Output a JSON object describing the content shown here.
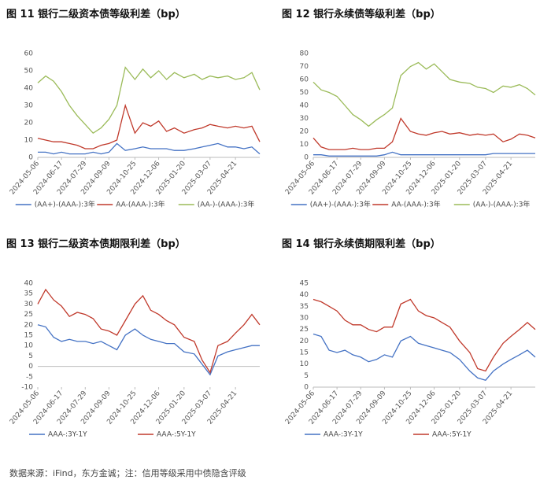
{
  "chart_data": [
    {
      "type": "line",
      "title": "图 11 银行二级资本债等级利差（bp）",
      "x": [
        "2024-05-06",
        "2024-05-20",
        "2024-06-03",
        "2024-06-17",
        "2024-07-01",
        "2024-07-15",
        "2024-07-29",
        "2024-08-12",
        "2024-08-26",
        "2024-09-09",
        "2024-09-23",
        "2024-10-08",
        "2024-10-25",
        "2024-11-08",
        "2024-11-22",
        "2024-12-06",
        "2024-12-20",
        "2025-01-03",
        "2025-01-20",
        "2025-02-07",
        "2025-02-21",
        "2025-03-07",
        "2025-03-21",
        "2025-04-07",
        "2025-04-21",
        "2025-05-06",
        "2025-05-20",
        "2025-06-03"
      ],
      "xlim": [
        "2024-05-06",
        "2025-06-03"
      ],
      "xticks": [
        "2024-05-06",
        "2024-06-17",
        "2024-07-29",
        "2024-09-09",
        "2024-10-25",
        "2024-12-06",
        "2025-01-20",
        "2025-03-07",
        "2025-04-21"
      ],
      "ylim": [
        0,
        60
      ],
      "yticks": [
        0,
        10,
        20,
        30,
        40,
        50,
        60
      ],
      "series": [
        {
          "name": "(AA+)-(AAA-):3年",
          "color": "#4472c4",
          "values": [
            3,
            3,
            2,
            3,
            2,
            2,
            2,
            3,
            2,
            3,
            8,
            4,
            5,
            6,
            5,
            5,
            5,
            4,
            4,
            5,
            6,
            7,
            8,
            6,
            6,
            5,
            6,
            2
          ]
        },
        {
          "name": "AA-(AAA-):3年",
          "color": "#c0392b",
          "values": [
            11,
            10,
            9,
            9,
            8,
            7,
            5,
            5,
            7,
            8,
            10,
            30,
            14,
            20,
            18,
            21,
            15,
            17,
            14,
            16,
            17,
            19,
            18,
            17,
            18,
            17,
            18,
            9
          ]
        },
        {
          "name": "(AA-)-(AAA-):3年",
          "color": "#9bbb59",
          "values": [
            43,
            47,
            44,
            38,
            30,
            24,
            19,
            14,
            17,
            22,
            30,
            52,
            45,
            51,
            46,
            50,
            45,
            49,
            46,
            48,
            45,
            47,
            46,
            47,
            45,
            46,
            49,
            39
          ]
        }
      ]
    },
    {
      "type": "line",
      "title": "图 12 银行永续债等级利差（bp）",
      "x": [
        "2024-05-06",
        "2024-05-20",
        "2024-06-03",
        "2024-06-17",
        "2024-07-01",
        "2024-07-15",
        "2024-07-29",
        "2024-08-12",
        "2024-08-26",
        "2024-09-09",
        "2024-09-23",
        "2024-10-08",
        "2024-10-25",
        "2024-11-08",
        "2024-11-22",
        "2024-12-06",
        "2024-12-20",
        "2025-01-03",
        "2025-01-20",
        "2025-02-07",
        "2025-02-21",
        "2025-03-07",
        "2025-03-21",
        "2025-04-07",
        "2025-04-21",
        "2025-05-06",
        "2025-05-20",
        "2025-06-03"
      ],
      "xlim": [
        "2024-05-06",
        "2025-06-03"
      ],
      "xticks": [
        "2024-05-06",
        "2024-06-17",
        "2024-07-29",
        "2024-09-09",
        "2024-10-25",
        "2024-12-06",
        "2025-01-20",
        "2025-03-07",
        "2025-04-21"
      ],
      "ylim": [
        0,
        80
      ],
      "yticks": [
        0,
        10,
        20,
        30,
        40,
        50,
        60,
        70,
        80
      ],
      "series": [
        {
          "name": "(AA+)-(AAA-):3年",
          "color": "#4472c4",
          "values": [
            2,
            2,
            1,
            1,
            1,
            1,
            1,
            1,
            1,
            2,
            4,
            2,
            2,
            2,
            2,
            2,
            2,
            2,
            2,
            2,
            2,
            2,
            3,
            3,
            3,
            3,
            3,
            3
          ]
        },
        {
          "name": "AA-(AAA-):3年",
          "color": "#c0392b",
          "values": [
            15,
            8,
            6,
            6,
            6,
            7,
            6,
            6,
            7,
            7,
            12,
            30,
            20,
            18,
            17,
            19,
            20,
            18,
            19,
            17,
            18,
            17,
            18,
            12,
            14,
            18,
            17,
            15
          ]
        },
        {
          "name": "(AA-)-(AAA-):3年",
          "color": "#9bbb59",
          "values": [
            58,
            52,
            50,
            47,
            40,
            33,
            29,
            24,
            29,
            33,
            38,
            63,
            70,
            73,
            68,
            72,
            66,
            60,
            58,
            57,
            54,
            53,
            50,
            55,
            54,
            56,
            53,
            48
          ]
        }
      ]
    },
    {
      "type": "line",
      "title": "图 13 银行二级资本债期限利差（bp）",
      "x": [
        "2024-05-06",
        "2024-05-20",
        "2024-06-03",
        "2024-06-17",
        "2024-07-01",
        "2024-07-15",
        "2024-07-29",
        "2024-08-12",
        "2024-08-26",
        "2024-09-09",
        "2024-09-23",
        "2024-10-08",
        "2024-10-25",
        "2024-11-08",
        "2024-11-22",
        "2024-12-06",
        "2024-12-20",
        "2025-01-03",
        "2025-01-20",
        "2025-02-07",
        "2025-02-21",
        "2025-03-07",
        "2025-03-21",
        "2025-04-07",
        "2025-04-21",
        "2025-05-06",
        "2025-05-20",
        "2025-06-03"
      ],
      "xlim": [
        "2024-05-06",
        "2025-06-03"
      ],
      "xticks": [
        "2024-05-06",
        "2024-06-17",
        "2024-07-29",
        "2024-09-09",
        "2024-10-25",
        "2024-12-06",
        "2025-01-20",
        "2025-03-07",
        "2025-04-21"
      ],
      "ylim": [
        -10,
        40
      ],
      "yticks": [
        -10,
        -5,
        0,
        5,
        10,
        15,
        20,
        25,
        30,
        35,
        40
      ],
      "series": [
        {
          "name": "AAA-:3Y-1Y",
          "color": "#4472c4",
          "values": [
            20,
            19,
            14,
            12,
            13,
            12,
            12,
            11,
            12,
            10,
            8,
            15,
            18,
            15,
            13,
            12,
            11,
            11,
            7,
            6,
            1,
            -4,
            5,
            7,
            8,
            9,
            10,
            10
          ]
        },
        {
          "name": "AAA-:5Y-1Y",
          "color": "#c0392b",
          "values": [
            30,
            37,
            32,
            29,
            24,
            26,
            25,
            23,
            18,
            17,
            15,
            22,
            30,
            34,
            27,
            25,
            22,
            20,
            14,
            12,
            3,
            -3,
            10,
            12,
            16,
            20,
            25,
            20
          ]
        }
      ]
    },
    {
      "type": "line",
      "title": "图 14 银行永续债期限利差（bp）",
      "x": [
        "2024-05-06",
        "2024-05-20",
        "2024-06-03",
        "2024-06-17",
        "2024-07-01",
        "2024-07-15",
        "2024-07-29",
        "2024-08-12",
        "2024-08-26",
        "2024-09-09",
        "2024-09-23",
        "2024-10-08",
        "2024-10-25",
        "2024-11-08",
        "2024-11-22",
        "2024-12-06",
        "2024-12-20",
        "2025-01-03",
        "2025-01-20",
        "2025-02-07",
        "2025-02-21",
        "2025-03-07",
        "2025-03-21",
        "2025-04-07",
        "2025-04-21",
        "2025-05-06",
        "2025-05-20",
        "2025-06-03"
      ],
      "xlim": [
        "2024-05-06",
        "2025-06-03"
      ],
      "xticks": [
        "2024-05-06",
        "2024-06-17",
        "2024-07-29",
        "2024-09-09",
        "2024-10-25",
        "2024-12-06",
        "2025-01-20",
        "2025-03-07",
        "2025-04-21"
      ],
      "ylim": [
        0,
        45
      ],
      "yticks": [
        0,
        5,
        10,
        15,
        20,
        25,
        30,
        35,
        40,
        45
      ],
      "series": [
        {
          "name": "AAA-:3Y-1Y",
          "color": "#4472c4",
          "values": [
            23,
            22,
            16,
            15,
            16,
            14,
            13,
            11,
            12,
            14,
            13,
            20,
            22,
            19,
            18,
            17,
            16,
            15,
            12,
            7,
            4,
            3,
            7,
            10,
            12,
            14,
            16,
            13
          ]
        },
        {
          "name": "AAA-:5Y-1Y",
          "color": "#c0392b",
          "values": [
            38,
            37,
            35,
            33,
            29,
            27,
            27,
            25,
            24,
            26,
            26,
            36,
            38,
            33,
            31,
            30,
            28,
            26,
            20,
            15,
            8,
            7,
            13,
            19,
            22,
            25,
            28,
            25
          ]
        }
      ]
    }
  ],
  "source": "数据来源：iFind，东方金诚；注：信用等级采用中债隐含评级"
}
